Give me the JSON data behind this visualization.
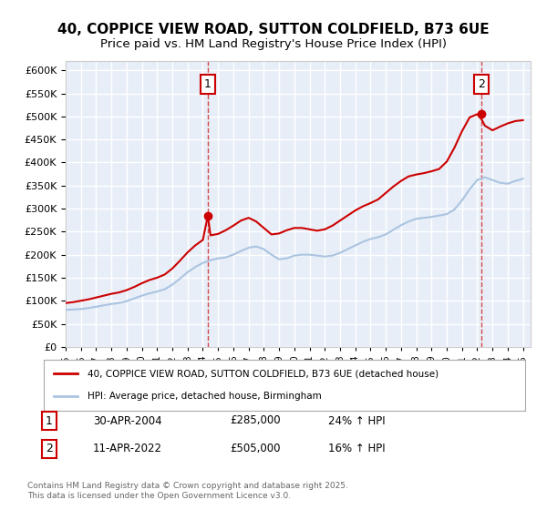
{
  "title": "40, COPPICE VIEW ROAD, SUTTON COLDFIELD, B73 6UE",
  "subtitle": "Price paid vs. HM Land Registry's House Price Index (HPI)",
  "ylabel": "",
  "ylim": [
    0,
    620000
  ],
  "yticks": [
    0,
    50000,
    100000,
    150000,
    200000,
    250000,
    300000,
    350000,
    400000,
    450000,
    500000,
    550000,
    600000
  ],
  "bg_color": "#e8eef8",
  "plot_bg": "#e8eef8",
  "grid_color": "#ffffff",
  "red_color": "#cc0000",
  "blue_color": "#aac4e0",
  "legend_label_red": "40, COPPICE VIEW ROAD, SUTTON COLDFIELD, B73 6UE (detached house)",
  "legend_label_blue": "HPI: Average price, detached house, Birmingham",
  "sale1_date": "30-APR-2004",
  "sale1_price": "£285,000",
  "sale1_hpi": "24% ↑ HPI",
  "sale1_year": 2004.33,
  "sale2_date": "11-APR-2022",
  "sale2_price": "£505,000",
  "sale2_hpi": "16% ↑ HPI",
  "sale2_year": 2022.28,
  "footer": "Contains HM Land Registry data © Crown copyright and database right 2025.\nThis data is licensed under the Open Government Licence v3.0.",
  "hpi_years": [
    1995,
    1995.5,
    1996,
    1996.5,
    1997,
    1997.5,
    1998,
    1998.5,
    1999,
    1999.5,
    2000,
    2000.5,
    2001,
    2001.5,
    2002,
    2002.5,
    2003,
    2003.5,
    2004,
    2004.5,
    2005,
    2005.5,
    2006,
    2006.5,
    2007,
    2007.5,
    2008,
    2008.5,
    2009,
    2009.5,
    2010,
    2010.5,
    2011,
    2011.5,
    2012,
    2012.5,
    2013,
    2013.5,
    2014,
    2014.5,
    2015,
    2015.5,
    2016,
    2016.5,
    2017,
    2017.5,
    2018,
    2018.5,
    2019,
    2019.5,
    2020,
    2020.5,
    2021,
    2021.5,
    2022,
    2022.5,
    2023,
    2023.5,
    2024,
    2024.5,
    2025
  ],
  "hpi_values": [
    80000,
    81000,
    82000,
    84000,
    87000,
    90000,
    93000,
    95000,
    99000,
    105000,
    111000,
    116000,
    120000,
    125000,
    135000,
    148000,
    162000,
    173000,
    182000,
    188000,
    192000,
    194000,
    200000,
    208000,
    215000,
    218000,
    212000,
    200000,
    190000,
    192000,
    198000,
    200000,
    200000,
    198000,
    196000,
    198000,
    204000,
    212000,
    220000,
    228000,
    234000,
    238000,
    244000,
    254000,
    264000,
    272000,
    278000,
    280000,
    282000,
    285000,
    288000,
    298000,
    318000,
    342000,
    362000,
    368000,
    362000,
    356000,
    354000,
    360000,
    365000
  ],
  "red_years": [
    1995,
    1995.5,
    1996,
    1996.5,
    1997,
    1997.5,
    1998,
    1998.5,
    1999,
    1999.5,
    2000,
    2000.5,
    2001,
    2001.5,
    2002,
    2002.5,
    2003,
    2003.5,
    2004,
    2004.33,
    2004.5,
    2005,
    2005.5,
    2006,
    2006.5,
    2007,
    2007.5,
    2008,
    2008.5,
    2009,
    2009.5,
    2010,
    2010.5,
    2011,
    2011.5,
    2012,
    2012.5,
    2013,
    2013.5,
    2014,
    2014.5,
    2015,
    2015.5,
    2016,
    2016.5,
    2017,
    2017.5,
    2018,
    2018.5,
    2019,
    2019.5,
    2020,
    2020.5,
    2021,
    2021.5,
    2022,
    2022.28,
    2022.5,
    2023,
    2023.5,
    2024,
    2024.5,
    2025
  ],
  "red_values": [
    95000,
    97000,
    100000,
    103000,
    107000,
    111000,
    115000,
    118000,
    123000,
    130000,
    138000,
    145000,
    150000,
    157000,
    170000,
    187000,
    205000,
    220000,
    232000,
    285000,
    242000,
    245000,
    253000,
    263000,
    274000,
    280000,
    272000,
    258000,
    244000,
    246000,
    253000,
    258000,
    258000,
    255000,
    252000,
    255000,
    263000,
    274000,
    285000,
    296000,
    305000,
    312000,
    320000,
    334000,
    348000,
    360000,
    370000,
    374000,
    377000,
    381000,
    386000,
    402000,
    432000,
    468000,
    498000,
    505000,
    494000,
    480000,
    470000,
    478000,
    485000,
    490000,
    492000
  ]
}
